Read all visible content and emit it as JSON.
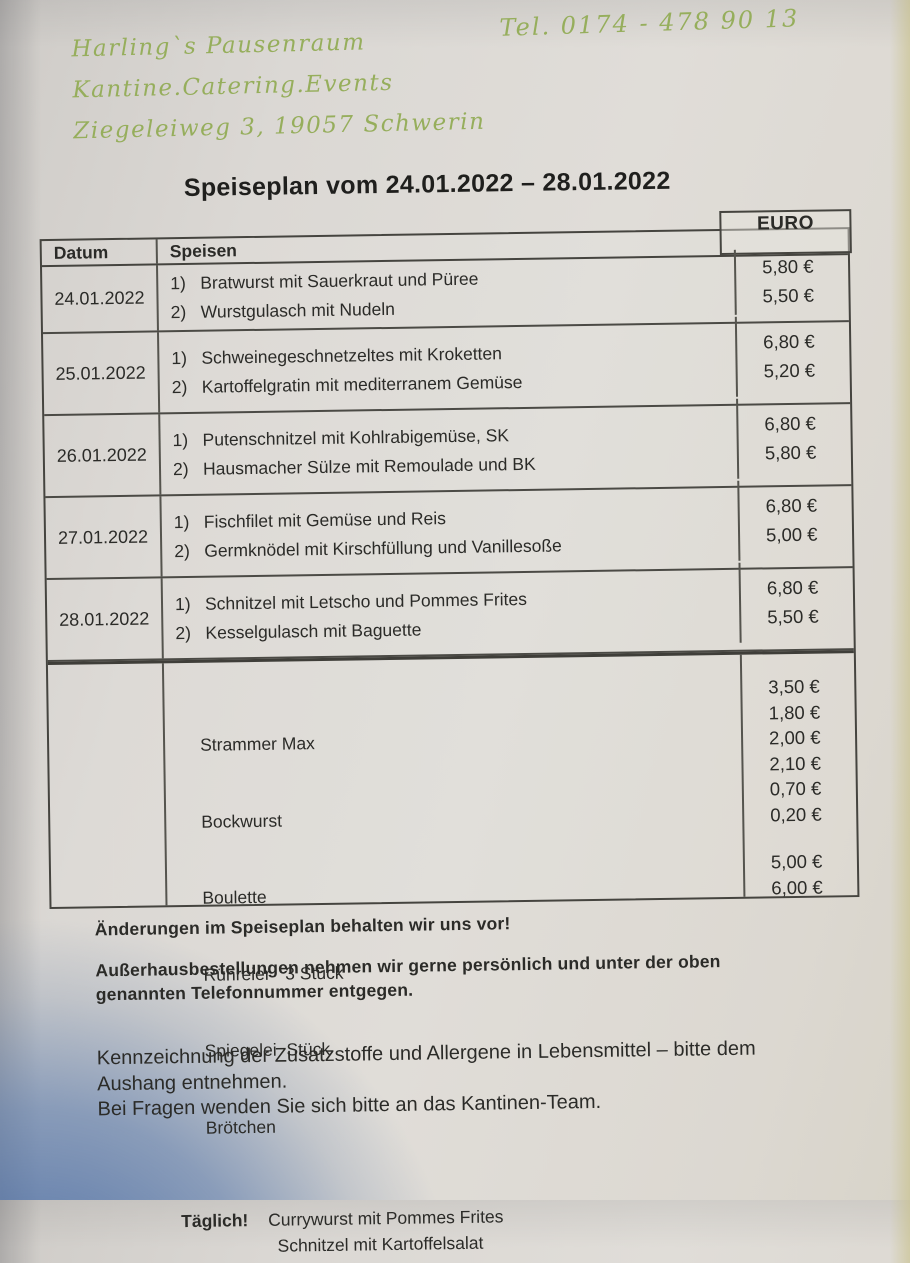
{
  "header": {
    "business_name": "Harling`s Pausenraum",
    "business_tagline": "Kantine.Catering.Events",
    "business_address": "Ziegeleiweg 3, 19057 Schwerin",
    "phone": "Tel. 0174 - 478 90 13",
    "accent_green": "#96ae5c"
  },
  "title": "Speiseplan vom 24.01.2022 – 28.01.2022",
  "table": {
    "columns": {
      "date": "Datum",
      "dishes": "Speisen",
      "price": "EURO"
    },
    "rows": [
      {
        "date": "24.01.2022",
        "items": [
          {
            "no": "1)",
            "name": "Bratwurst mit Sauerkraut und Püree",
            "price": "5,80 €"
          },
          {
            "no": "2)",
            "name": "Wurstgulasch mit Nudeln",
            "price": "5,50 €"
          }
        ]
      },
      {
        "date": "25.01.2022",
        "items": [
          {
            "no": "1)",
            "name": "Schweinegeschnetzeltes mit Kroketten",
            "price": "6,80 €"
          },
          {
            "no": "2)",
            "name": "Kartoffelgratin mit mediterranem Gemüse",
            "price": "5,20 €"
          }
        ]
      },
      {
        "date": "26.01.2022",
        "items": [
          {
            "no": "1)",
            "name": "Putenschnitzel mit Kohlrabigemüse, SK",
            "price": "6,80 €"
          },
          {
            "no": "2)",
            "name": "Hausmacher Sülze mit Remoulade und BK",
            "price": "5,80 €"
          }
        ]
      },
      {
        "date": "27.01.2022",
        "items": [
          {
            "no": "1)",
            "name": "Fischfilet mit Gemüse und Reis",
            "price": "6,80 €"
          },
          {
            "no": "2)",
            "name": "Germknödel mit Kirschfüllung und Vanillesoße",
            "price": "5,00 €"
          }
        ]
      },
      {
        "date": "28.01.2022",
        "items": [
          {
            "no": "1)",
            "name": "Schnitzel mit Letscho und Pommes Frites",
            "price": "6,80 €"
          },
          {
            "no": "2)",
            "name": "Kesselgulasch mit Baguette",
            "price": "5,50 €"
          }
        ]
      }
    ],
    "extras": {
      "items": [
        {
          "name": "Strammer Max",
          "price": "3,50 €"
        },
        {
          "name": "Bockwurst",
          "price": "1,80 €"
        },
        {
          "name": "Boulette",
          "price": "2,00 €"
        },
        {
          "name": "Rühreier   3 Stück",
          "price": "2,10 €"
        },
        {
          "name": "Spiegelei  Stück",
          "price": "0,70 €"
        },
        {
          "name": "Brötchen",
          "price": "0,20 €"
        }
      ],
      "daily_label": "Täglich!",
      "daily_items": [
        {
          "name": "Currywurst mit Pommes Frites",
          "price": "5,00 €"
        },
        {
          "name": "Schnitzel mit Kartoffelsalat",
          "price": "6,00 €"
        }
      ]
    }
  },
  "notes": {
    "note1": "Änderungen im Speiseplan behalten wir uns vor!",
    "note2": "Außerhausbestellungen nehmen wir gerne persönlich und unter der oben genannten Telefonnummer entgegen.",
    "note3": "Kennzeichnung der Zusatzstoffe und Allergene in Lebensmittel – bitte dem Aushang entnehmen.",
    "note4": "Bei Fragen wenden Sie sich bitte an das Kantinen-Team."
  }
}
